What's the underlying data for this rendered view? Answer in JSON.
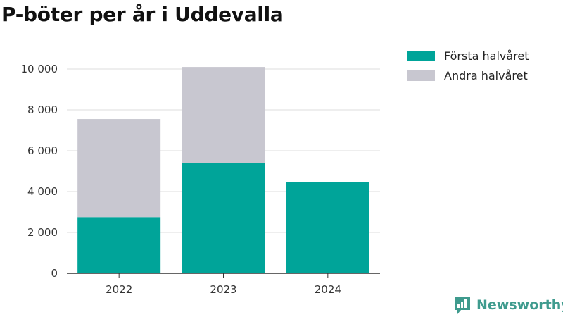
{
  "title": "P-böter per år i Uddevalla",
  "brand": {
    "name": "Newsworthy",
    "icon": "newsworthy-logo-icon",
    "color": "#3f9b8e"
  },
  "chart_data": {
    "type": "bar",
    "stacked": true,
    "categories": [
      "2022",
      "2023",
      "2024"
    ],
    "series": [
      {
        "name": "Första halvåret",
        "color": "#00a499",
        "values": [
          2750,
          5400,
          4450
        ]
      },
      {
        "name": "Andra halvåret",
        "color": "#c8c7d0",
        "values": [
          4800,
          4700,
          null
        ]
      }
    ],
    "ylim": [
      0,
      10000
    ],
    "yticks": [
      0,
      2000,
      4000,
      6000,
      8000,
      10000
    ],
    "ytick_labels": [
      "0",
      "2 000",
      "4 000",
      "6 000",
      "8 000",
      "10 000"
    ],
    "grid": true,
    "legend_position": "top-right",
    "xlabel": "",
    "ylabel": ""
  }
}
